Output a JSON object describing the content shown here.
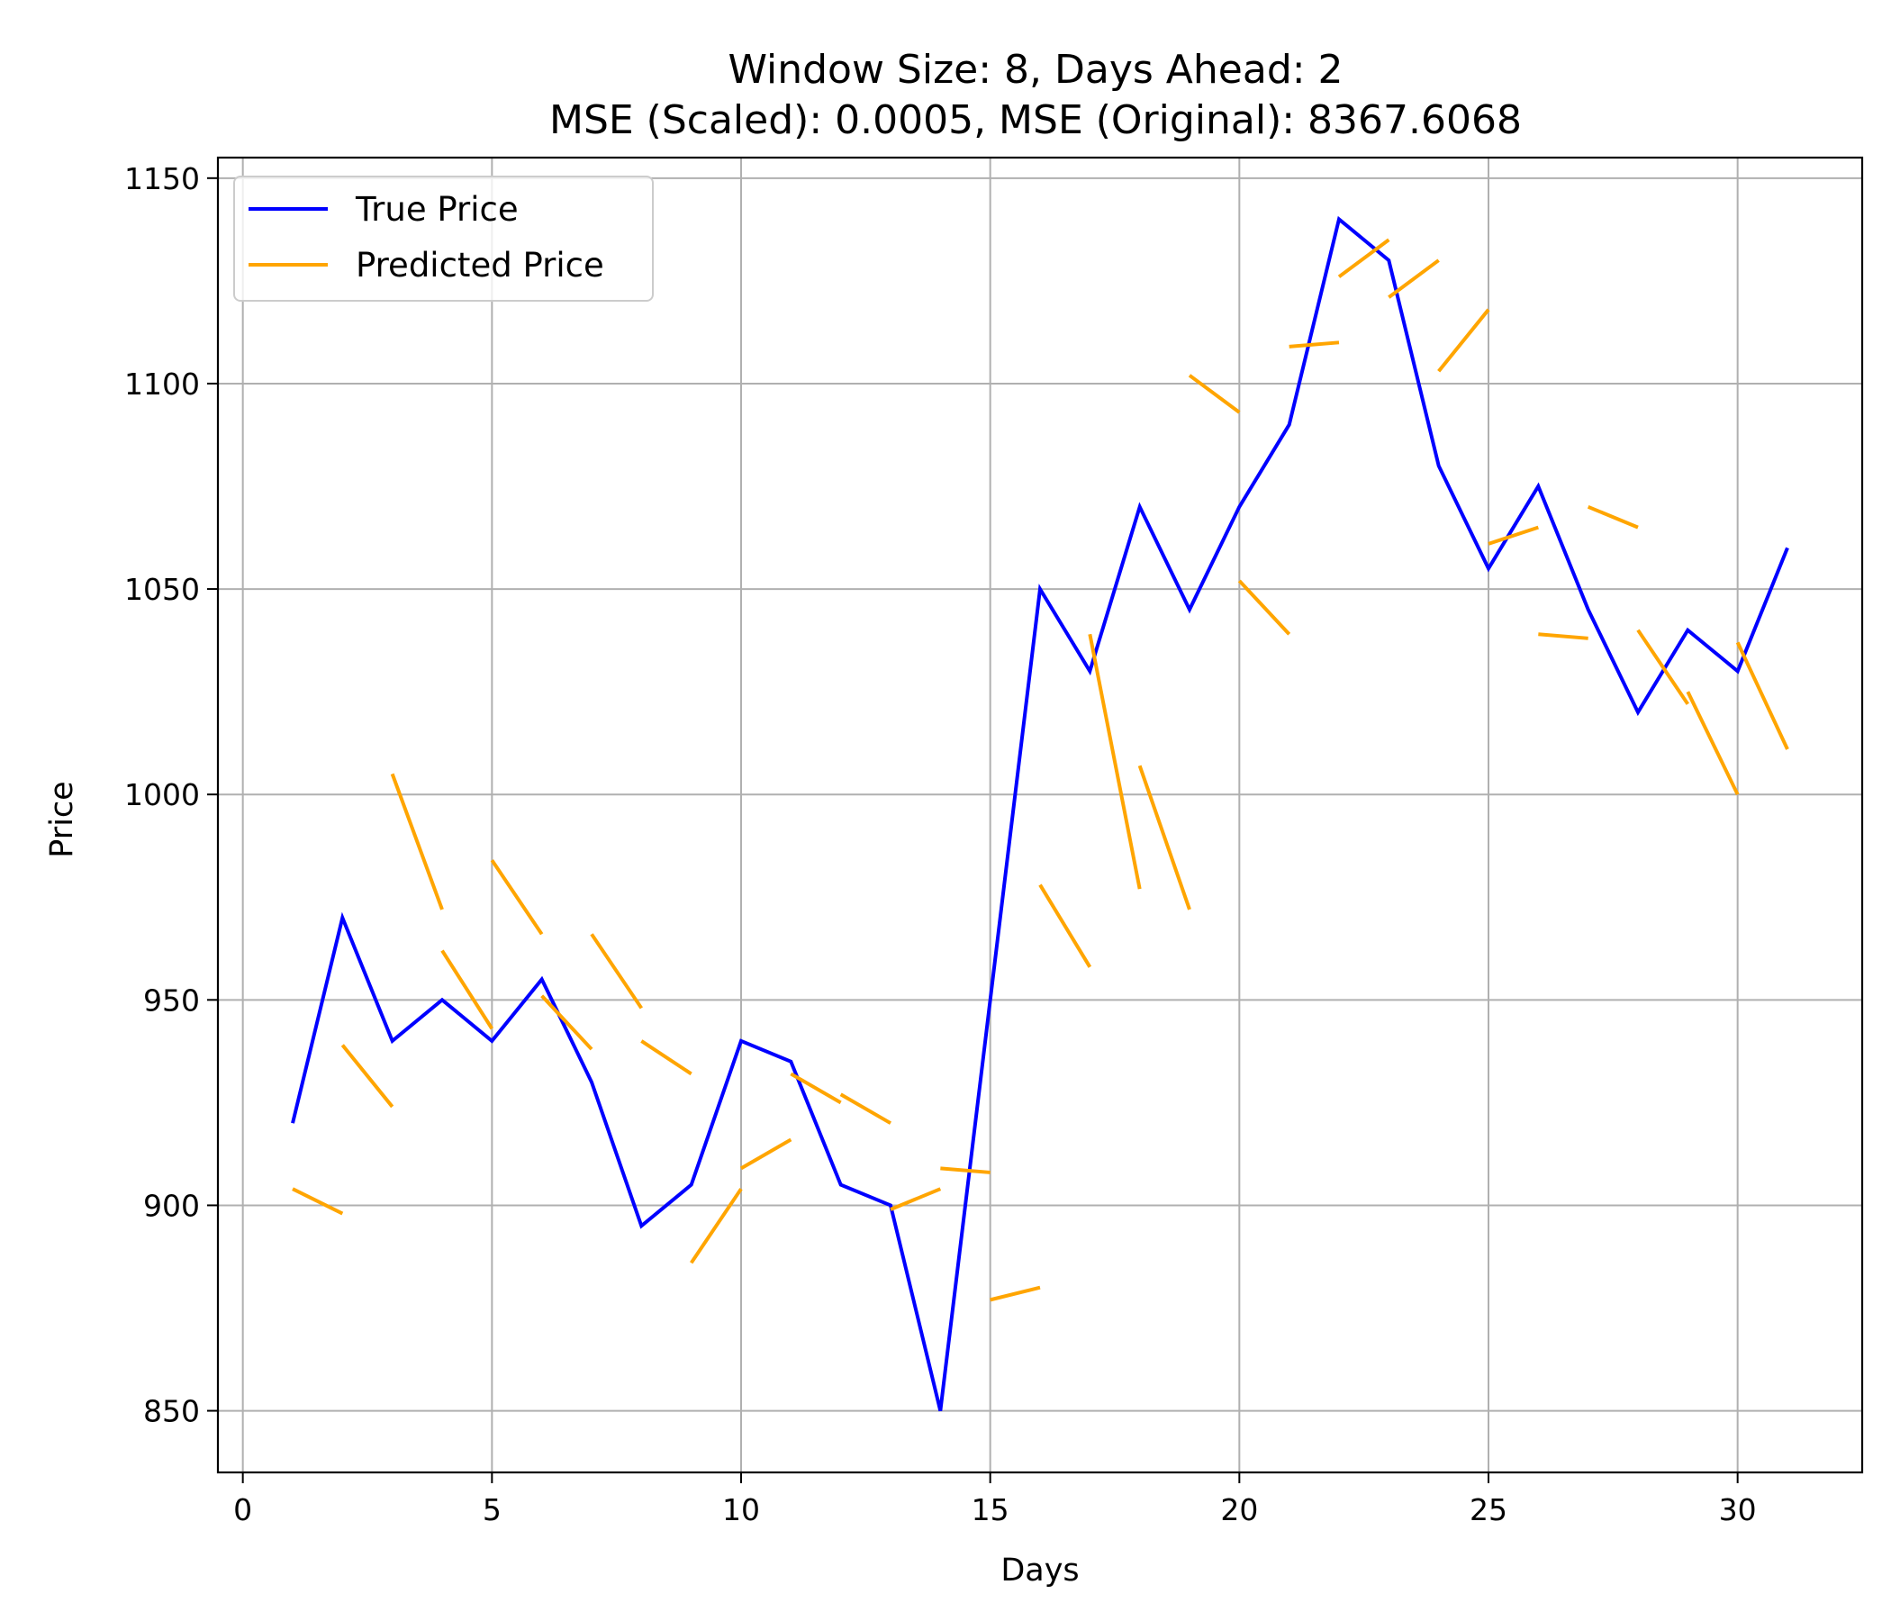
{
  "chart_data": {
    "type": "line",
    "title_line1": "Window Size: 8, Days Ahead: 2",
    "title_line2": "MSE (Scaled): 0.0005, MSE (Original): 8367.6068",
    "xlabel": "Days",
    "ylabel": "Price",
    "xlim": [
      -0.5,
      32.5
    ],
    "ylim": [
      835,
      1155
    ],
    "x_ticks": [
      0,
      5,
      10,
      15,
      20,
      25,
      30
    ],
    "y_ticks": [
      850,
      900,
      950,
      1000,
      1050,
      1100,
      1150
    ],
    "grid": true,
    "legend_position": "upper left",
    "colors": {
      "true_price": "#0000ff",
      "predicted_price": "#ffa500"
    },
    "series": [
      {
        "name": "True Price",
        "x": [
          1,
          2,
          3,
          4,
          5,
          6,
          7,
          8,
          9,
          10,
          11,
          12,
          13,
          14,
          15,
          16,
          17,
          18,
          19,
          20,
          21,
          22,
          23,
          24,
          25,
          26,
          27,
          28,
          29,
          30,
          31
        ],
        "values": [
          920,
          970,
          940,
          950,
          940,
          955,
          930,
          895,
          905,
          940,
          935,
          905,
          900,
          850,
          950,
          1050,
          1030,
          1070,
          1045,
          1070,
          1090,
          1140,
          1130,
          1080,
          1055,
          1075,
          1045,
          1020,
          1040,
          1030,
          1060
        ]
      },
      {
        "name": "Predicted Price",
        "segments": [
          [
            [
              1,
              904
            ],
            [
              2,
              898
            ]
          ],
          [
            [
              2,
              939
            ],
            [
              3,
              924
            ]
          ],
          [
            [
              3,
              1005
            ],
            [
              4,
              972
            ]
          ],
          [
            [
              4,
              962
            ],
            [
              5,
              943
            ]
          ],
          [
            [
              5,
              984
            ],
            [
              6,
              966
            ]
          ],
          [
            [
              6,
              951
            ],
            [
              7,
              938
            ]
          ],
          [
            [
              7,
              966
            ],
            [
              8,
              948
            ]
          ],
          [
            [
              8,
              940
            ],
            [
              9,
              932
            ]
          ],
          [
            [
              9,
              886
            ],
            [
              10,
              904
            ]
          ],
          [
            [
              10,
              909
            ],
            [
              11,
              916
            ]
          ],
          [
            [
              11,
              932
            ],
            [
              12,
              925
            ]
          ],
          [
            [
              12,
              927
            ],
            [
              13,
              920
            ]
          ],
          [
            [
              13,
              899
            ],
            [
              14,
              904
            ]
          ],
          [
            [
              14,
              909
            ],
            [
              15,
              908
            ]
          ],
          [
            [
              15,
              877
            ],
            [
              16,
              880
            ]
          ],
          [
            [
              16,
              978
            ],
            [
              17,
              958
            ]
          ],
          [
            [
              17,
              1039
            ],
            [
              18,
              977
            ]
          ],
          [
            [
              18,
              1007
            ],
            [
              19,
              972
            ]
          ],
          [
            [
              19,
              1102
            ],
            [
              20,
              1093
            ]
          ],
          [
            [
              20,
              1052
            ],
            [
              21,
              1039
            ]
          ],
          [
            [
              21,
              1109
            ],
            [
              22,
              1110
            ]
          ],
          [
            [
              22,
              1126
            ],
            [
              23,
              1135
            ]
          ],
          [
            [
              23,
              1121
            ],
            [
              24,
              1130
            ]
          ],
          [
            [
              24,
              1103
            ],
            [
              25,
              1118
            ]
          ],
          [
            [
              25,
              1061
            ],
            [
              26,
              1065
            ]
          ],
          [
            [
              26,
              1039
            ],
            [
              27,
              1038
            ]
          ],
          [
            [
              27,
              1070
            ],
            [
              28,
              1065
            ]
          ],
          [
            [
              28,
              1040
            ],
            [
              29,
              1022
            ]
          ],
          [
            [
              29,
              1025
            ],
            [
              30,
              1000
            ]
          ],
          [
            [
              30,
              1037
            ],
            [
              31,
              1011
            ]
          ]
        ]
      }
    ]
  }
}
